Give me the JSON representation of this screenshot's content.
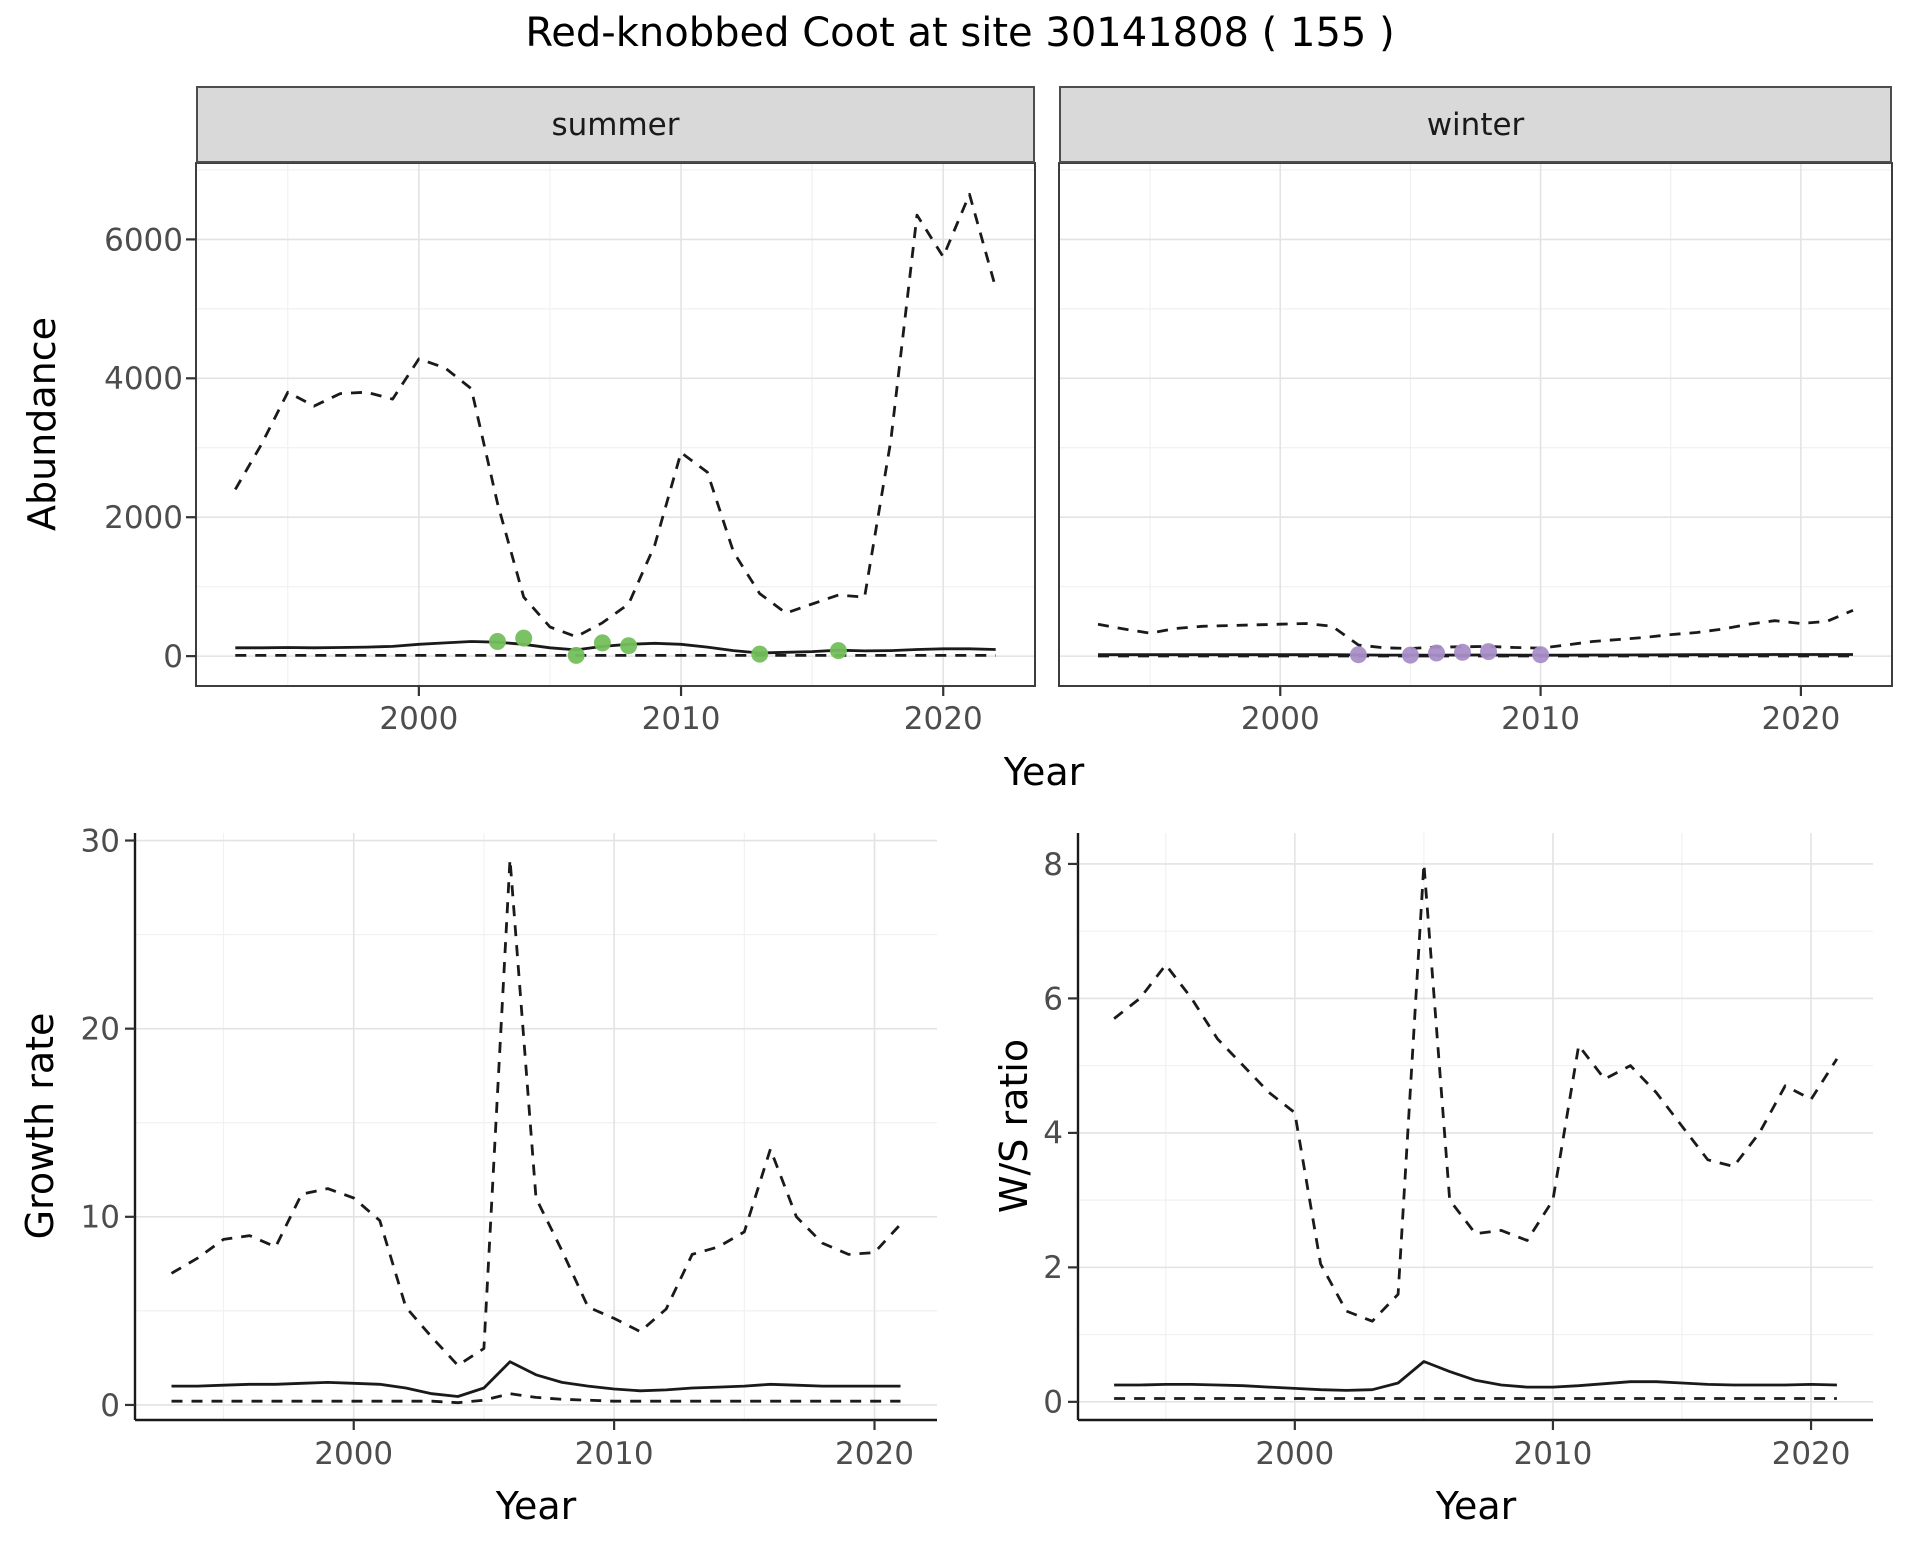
{
  "title": "Red-knobbed Coot at site 30141808 ( 155 )",
  "colors": {
    "summer_points": "#74bf5c",
    "winter_points": "#a98fc9",
    "line": "#1a1a1a",
    "strip_bg": "#d9d9d9",
    "grid_major": "#e3e3e3",
    "grid_minor": "#f1f1f1",
    "tick_text": "#4d4d4d"
  },
  "chart_data": [
    {
      "id": "abundance_summer",
      "type": "line",
      "facet": "summer",
      "xlabel": "Year",
      "ylabel": "Abundance",
      "xlim": [
        1991.5,
        2023.5
      ],
      "ylim": [
        -430,
        7100
      ],
      "xticks": [
        2000,
        2010,
        2020
      ],
      "yticks": [
        0,
        2000,
        4000,
        6000
      ],
      "grid": true,
      "legend": "none",
      "series": [
        {
          "name": "upper_ci",
          "style": "dashed",
          "x": [
            1993,
            1994,
            1995,
            1996,
            1997,
            1998,
            1999,
            2000,
            2001,
            2002,
            2003,
            2004,
            2005,
            2006,
            2007,
            2008,
            2009,
            2010,
            2011,
            2012,
            2013,
            2014,
            2015,
            2016,
            2017,
            2018,
            2019,
            2020,
            2021,
            2022
          ],
          "y": [
            2400,
            3050,
            3800,
            3600,
            3780,
            3800,
            3700,
            4280,
            4150,
            3850,
            2200,
            850,
            420,
            280,
            480,
            750,
            1600,
            2930,
            2650,
            1500,
            900,
            620,
            750,
            880,
            850,
            3100,
            6350,
            5750,
            6650,
            5300
          ]
        },
        {
          "name": "fitted_trend",
          "style": "solid",
          "x": [
            1993,
            1994,
            1995,
            1996,
            1997,
            1998,
            1999,
            2000,
            2001,
            2002,
            2003,
            2004,
            2005,
            2006,
            2007,
            2008,
            2009,
            2010,
            2011,
            2012,
            2013,
            2014,
            2015,
            2016,
            2017,
            2018,
            2019,
            2020,
            2021,
            2022
          ],
          "y": [
            120,
            120,
            125,
            120,
            125,
            130,
            140,
            170,
            190,
            210,
            200,
            170,
            120,
            90,
            140,
            170,
            185,
            170,
            130,
            80,
            45,
            55,
            65,
            85,
            75,
            80,
            95,
            105,
            105,
            95
          ]
        },
        {
          "name": "lower_ci",
          "style": "dashed",
          "x": [
            1993,
            1994,
            1995,
            1996,
            1997,
            1998,
            1999,
            2000,
            2001,
            2002,
            2003,
            2004,
            2005,
            2006,
            2007,
            2008,
            2009,
            2010,
            2011,
            2012,
            2013,
            2014,
            2015,
            2016,
            2017,
            2018,
            2019,
            2020,
            2021,
            2022
          ],
          "y": [
            10,
            10,
            10,
            10,
            10,
            10,
            10,
            10,
            10,
            10,
            10,
            10,
            10,
            10,
            10,
            10,
            10,
            10,
            10,
            10,
            10,
            10,
            10,
            10,
            10,
            10,
            10,
            10,
            10,
            10
          ]
        },
        {
          "name": "observed_counts",
          "style": "points",
          "color": "#74bf5c",
          "x": [
            2003,
            2004,
            2006,
            2007,
            2008,
            2013,
            2016
          ],
          "y": [
            210,
            260,
            10,
            190,
            150,
            30,
            80
          ]
        }
      ]
    },
    {
      "id": "abundance_winter",
      "type": "line",
      "facet": "winter",
      "xlabel": "Year",
      "ylabel": "Abundance",
      "xlim": [
        1991.5,
        2023.5
      ],
      "ylim": [
        -430,
        7100
      ],
      "xticks": [
        2000,
        2010,
        2020
      ],
      "yticks": [
        0,
        2000,
        4000,
        6000
      ],
      "grid": true,
      "legend": "none",
      "series": [
        {
          "name": "upper_ci",
          "style": "dashed",
          "x": [
            1993,
            1994,
            1995,
            1996,
            1997,
            1998,
            1999,
            2000,
            2001,
            2002,
            2003,
            2004,
            2005,
            2006,
            2007,
            2008,
            2009,
            2010,
            2011,
            2012,
            2013,
            2014,
            2015,
            2016,
            2017,
            2018,
            2019,
            2020,
            2021,
            2022
          ],
          "y": [
            460,
            390,
            330,
            400,
            430,
            440,
            450,
            460,
            470,
            430,
            160,
            120,
            110,
            130,
            135,
            140,
            125,
            115,
            160,
            210,
            240,
            270,
            310,
            340,
            390,
            460,
            510,
            470,
            500,
            660
          ]
        },
        {
          "name": "fitted_trend",
          "style": "solid",
          "x": [
            1993,
            1994,
            1995,
            1996,
            1997,
            1998,
            1999,
            2000,
            2001,
            2002,
            2003,
            2004,
            2005,
            2006,
            2007,
            2008,
            2009,
            2010,
            2011,
            2012,
            2013,
            2014,
            2015,
            2016,
            2017,
            2018,
            2019,
            2020,
            2021,
            2022
          ],
          "y": [
            20,
            20,
            20,
            20,
            20,
            20,
            20,
            20,
            20,
            20,
            18,
            15,
            14,
            15,
            16,
            16,
            15,
            14,
            15,
            16,
            17,
            18,
            19,
            20,
            21,
            22,
            23,
            23,
            23,
            24
          ]
        },
        {
          "name": "lower_ci",
          "style": "dashed",
          "x": [
            1993,
            1994,
            1995,
            1996,
            1997,
            1998,
            1999,
            2000,
            2001,
            2002,
            2003,
            2004,
            2005,
            2006,
            2007,
            2008,
            2009,
            2010,
            2011,
            2012,
            2013,
            2014,
            2015,
            2016,
            2017,
            2018,
            2019,
            2020,
            2021,
            2022
          ],
          "y": [
            2,
            2,
            2,
            2,
            2,
            2,
            2,
            2,
            2,
            2,
            2,
            2,
            2,
            2,
            2,
            2,
            2,
            2,
            2,
            2,
            2,
            2,
            2,
            2,
            2,
            2,
            2,
            2,
            2,
            2
          ]
        },
        {
          "name": "observed_counts",
          "style": "points",
          "color": "#a98fc9",
          "x": [
            2003,
            2005,
            2006,
            2007,
            2008,
            2010
          ],
          "y": [
            20,
            15,
            45,
            55,
            65,
            20
          ]
        }
      ]
    },
    {
      "id": "growth_rate",
      "type": "line",
      "facet": "",
      "xlabel": "Year",
      "ylabel": "Growth rate",
      "xlim": [
        1991.6,
        2022.4
      ],
      "ylim": [
        -0.8,
        30.4
      ],
      "xticks": [
        2000,
        2010,
        2020
      ],
      "yticks": [
        0,
        10,
        20,
        30
      ],
      "grid": true,
      "legend": "none",
      "series": [
        {
          "name": "upper_ci",
          "style": "dashed",
          "x": [
            1993,
            1994,
            1995,
            1996,
            1997,
            1998,
            1999,
            2000,
            2001,
            2002,
            2003,
            2004,
            2005,
            2006,
            2007,
            2008,
            2009,
            2010,
            2011,
            2012,
            2013,
            2014,
            2015,
            2016,
            2017,
            2018,
            2019,
            2020,
            2021
          ],
          "y": [
            7.0,
            7.8,
            8.8,
            9.0,
            8.4,
            11.2,
            11.5,
            11.0,
            9.8,
            5.2,
            3.6,
            2.1,
            3.0,
            29.0,
            11.0,
            8.2,
            5.2,
            4.6,
            3.9,
            5.1,
            8.0,
            8.4,
            9.2,
            13.6,
            10.0,
            8.6,
            8.0,
            8.1,
            9.6
          ]
        },
        {
          "name": "fitted_trend",
          "style": "solid",
          "x": [
            1993,
            1994,
            1995,
            1996,
            1997,
            1998,
            1999,
            2000,
            2001,
            2002,
            2003,
            2004,
            2005,
            2006,
            2007,
            2008,
            2009,
            2010,
            2011,
            2012,
            2013,
            2014,
            2015,
            2016,
            2017,
            2018,
            2019,
            2020,
            2021
          ],
          "y": [
            1.0,
            1.0,
            1.05,
            1.1,
            1.1,
            1.15,
            1.2,
            1.15,
            1.1,
            0.9,
            0.6,
            0.45,
            0.9,
            2.3,
            1.6,
            1.2,
            1.0,
            0.85,
            0.75,
            0.8,
            0.9,
            0.95,
            1.0,
            1.1,
            1.05,
            1.0,
            1.0,
            1.0,
            1.0
          ]
        },
        {
          "name": "lower_ci",
          "style": "dashed",
          "x": [
            1993,
            1994,
            1995,
            1996,
            1997,
            1998,
            1999,
            2000,
            2001,
            2002,
            2003,
            2004,
            2005,
            2006,
            2007,
            2008,
            2009,
            2010,
            2011,
            2012,
            2013,
            2014,
            2015,
            2016,
            2017,
            2018,
            2019,
            2020,
            2021
          ],
          "y": [
            0.2,
            0.2,
            0.2,
            0.2,
            0.2,
            0.2,
            0.2,
            0.2,
            0.2,
            0.2,
            0.2,
            0.12,
            0.25,
            0.6,
            0.4,
            0.3,
            0.25,
            0.2,
            0.2,
            0.2,
            0.2,
            0.2,
            0.2,
            0.2,
            0.2,
            0.2,
            0.2,
            0.2,
            0.2
          ]
        }
      ]
    },
    {
      "id": "ws_ratio",
      "type": "line",
      "facet": "",
      "xlabel": "Year",
      "ylabel": "W/S ratio",
      "xlim": [
        1991.6,
        2022.4
      ],
      "ylim": [
        -0.27,
        8.46
      ],
      "xticks": [
        2000,
        2010,
        2020
      ],
      "yticks": [
        0,
        2,
        4,
        6,
        8
      ],
      "grid": true,
      "legend": "none",
      "series": [
        {
          "name": "upper_ci",
          "style": "dashed",
          "x": [
            1993,
            1994,
            1995,
            1996,
            1997,
            1998,
            1999,
            2000,
            2001,
            2002,
            2003,
            2004,
            2005,
            2006,
            2007,
            2008,
            2009,
            2010,
            2011,
            2012,
            2013,
            2014,
            2015,
            2016,
            2017,
            2018,
            2019,
            2020,
            2021
          ],
          "y": [
            5.7,
            6.0,
            6.5,
            6.0,
            5.4,
            5.0,
            4.6,
            4.3,
            2.05,
            1.35,
            1.2,
            1.6,
            8.0,
            3.0,
            2.5,
            2.55,
            2.4,
            3.0,
            5.3,
            4.8,
            5.0,
            4.6,
            4.1,
            3.6,
            3.5,
            4.0,
            4.7,
            4.5,
            5.1
          ]
        },
        {
          "name": "fitted_trend",
          "style": "solid",
          "x": [
            1993,
            1994,
            1995,
            1996,
            1997,
            1998,
            1999,
            2000,
            2001,
            2002,
            2003,
            2004,
            2005,
            2006,
            2007,
            2008,
            2009,
            2010,
            2011,
            2012,
            2013,
            2014,
            2015,
            2016,
            2017,
            2018,
            2019,
            2020,
            2021
          ],
          "y": [
            0.25,
            0.25,
            0.26,
            0.26,
            0.25,
            0.24,
            0.22,
            0.2,
            0.18,
            0.17,
            0.18,
            0.28,
            0.6,
            0.45,
            0.32,
            0.25,
            0.22,
            0.22,
            0.24,
            0.27,
            0.3,
            0.3,
            0.28,
            0.26,
            0.25,
            0.25,
            0.25,
            0.26,
            0.25
          ]
        },
        {
          "name": "lower_ci",
          "style": "dashed",
          "x": [
            1993,
            1994,
            1995,
            1996,
            1997,
            1998,
            1999,
            2000,
            2001,
            2002,
            2003,
            2004,
            2005,
            2006,
            2007,
            2008,
            2009,
            2010,
            2011,
            2012,
            2013,
            2014,
            2015,
            2016,
            2017,
            2018,
            2019,
            2020,
            2021
          ],
          "y": [
            0.05,
            0.05,
            0.05,
            0.05,
            0.05,
            0.05,
            0.05,
            0.05,
            0.05,
            0.05,
            0.05,
            0.05,
            0.05,
            0.05,
            0.05,
            0.05,
            0.05,
            0.05,
            0.05,
            0.05,
            0.05,
            0.05,
            0.05,
            0.05,
            0.05,
            0.05,
            0.05,
            0.05,
            0.05
          ]
        }
      ]
    }
  ]
}
